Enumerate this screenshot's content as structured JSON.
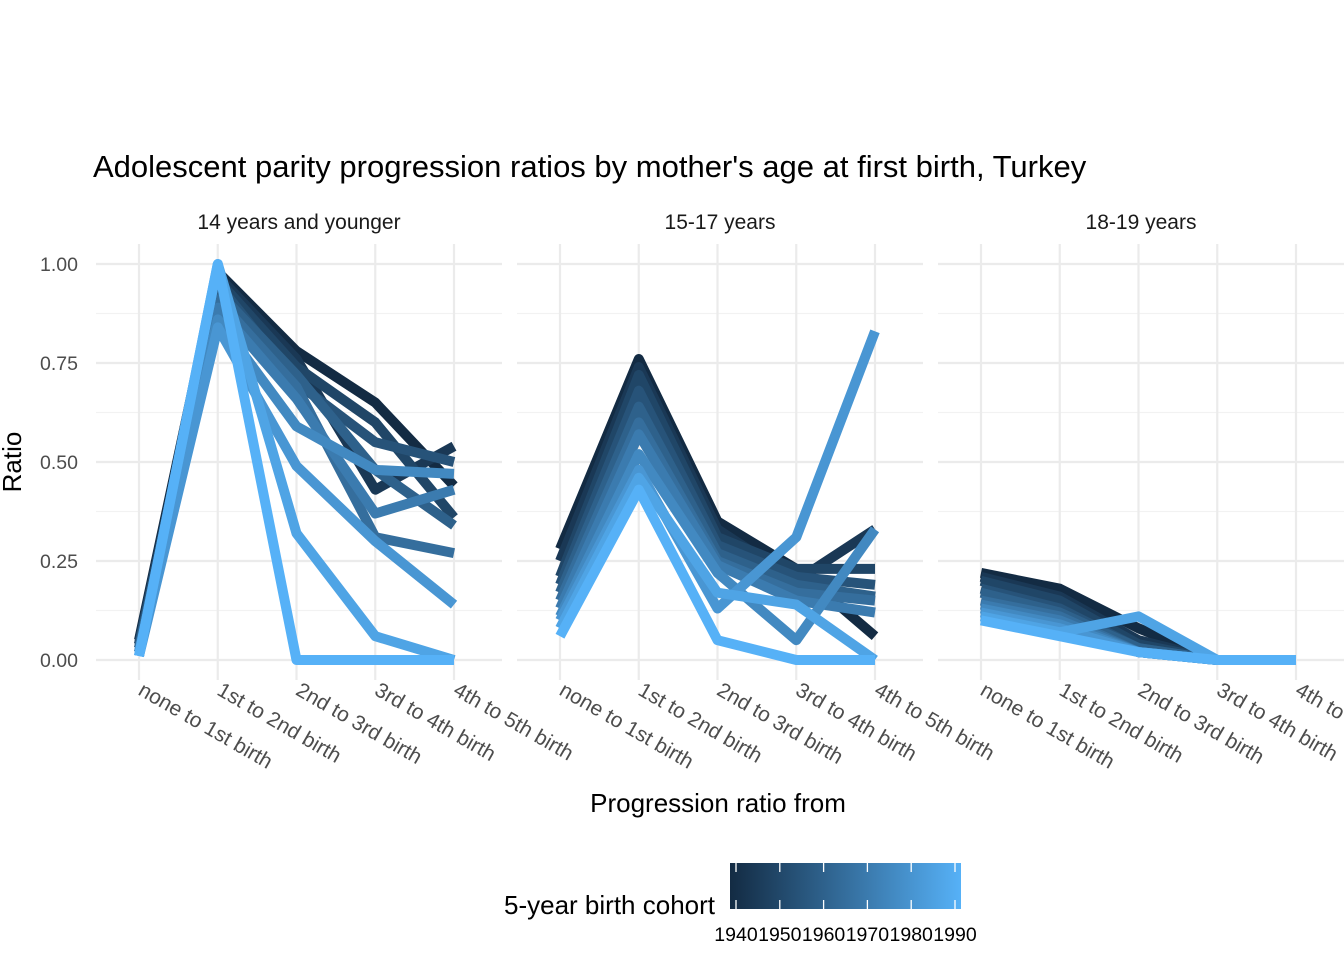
{
  "chart_data": {
    "type": "line",
    "title": "Adolescent parity progression ratios by mother's age at first birth,  Turkey",
    "xlabel": "Progression ratio from",
    "ylabel": "Ratio",
    "ylim": [
      0,
      1
    ],
    "y_ticks": [
      "0.00",
      "0.25",
      "0.50",
      "0.75",
      "1.00"
    ],
    "y_tick_values": [
      0,
      0.25,
      0.5,
      0.75,
      1
    ],
    "categories": [
      "none to 1st birth",
      "1st to 2nd birth",
      "2nd to 3rd birth",
      "3rd to 4th birth",
      "4th to 5th birth"
    ],
    "grid": true,
    "facets": [
      {
        "label": "14 years and younger",
        "series": [
          {
            "cohort": 1940,
            "values": [
              0.05,
              0.98,
              0.78,
              0.65,
              0.44
            ]
          },
          {
            "cohort": 1945,
            "values": [
              0.04,
              0.97,
              0.76,
              0.43,
              0.54
            ]
          },
          {
            "cohort": 1950,
            "values": [
              0.04,
              0.96,
              0.74,
              0.6,
              0.36
            ]
          },
          {
            "cohort": 1955,
            "values": [
              0.03,
              0.95,
              0.7,
              0.55,
              0.5
            ]
          },
          {
            "cohort": 1960,
            "values": [
              0.03,
              0.93,
              0.72,
              0.48,
              0.34
            ]
          },
          {
            "cohort": 1965,
            "values": [
              0.02,
              0.91,
              0.69,
              0.31,
              0.27
            ]
          },
          {
            "cohort": 1970,
            "values": [
              0.02,
              0.89,
              0.66,
              0.37,
              0.43
            ]
          },
          {
            "cohort": 1975,
            "values": [
              0.02,
              0.86,
              0.59,
              0.48,
              0.47
            ]
          },
          {
            "cohort": 1980,
            "values": [
              0.01,
              0.84,
              0.49,
              0.3,
              0.14
            ]
          },
          {
            "cohort": 1985,
            "values": [
              0.01,
              1.0,
              0.32,
              0.06,
              0.0
            ]
          },
          {
            "cohort": 1990,
            "values": [
              0.01,
              1.0,
              0.0,
              0.0,
              0.0
            ]
          }
        ]
      },
      {
        "label": "15-17 years",
        "series": [
          {
            "cohort": 1940,
            "values": [
              0.28,
              0.76,
              0.35,
              0.23,
              0.06
            ]
          },
          {
            "cohort": 1945,
            "values": [
              0.25,
              0.74,
              0.33,
              0.2,
              0.33
            ]
          },
          {
            "cohort": 1950,
            "values": [
              0.21,
              0.72,
              0.31,
              0.23,
              0.23
            ]
          },
          {
            "cohort": 1955,
            "values": [
              0.19,
              0.68,
              0.29,
              0.21,
              0.19
            ]
          },
          {
            "cohort": 1960,
            "values": [
              0.17,
              0.64,
              0.27,
              0.19,
              0.16
            ]
          },
          {
            "cohort": 1965,
            "values": [
              0.15,
              0.6,
              0.25,
              0.17,
              0.15
            ]
          },
          {
            "cohort": 1970,
            "values": [
              0.13,
              0.57,
              0.24,
              0.15,
              0.12
            ]
          },
          {
            "cohort": 1975,
            "values": [
              0.11,
              0.52,
              0.22,
              0.05,
              0.33
            ]
          },
          {
            "cohort": 1980,
            "values": [
              0.1,
              0.48,
              0.13,
              0.31,
              0.83
            ]
          },
          {
            "cohort": 1985,
            "values": [
              0.08,
              0.46,
              0.17,
              0.14,
              0.0
            ]
          },
          {
            "cohort": 1990,
            "values": [
              0.06,
              0.43,
              0.05,
              0.0,
              0.0
            ]
          }
        ]
      },
      {
        "label": "18-19 years",
        "series": [
          {
            "cohort": 1940,
            "values": [
              0.22,
              0.18,
              0.08,
              0.0,
              0.0
            ]
          },
          {
            "cohort": 1945,
            "values": [
              0.21,
              0.16,
              0.05,
              0.0,
              0.0
            ]
          },
          {
            "cohort": 1950,
            "values": [
              0.2,
              0.15,
              0.04,
              0.0,
              0.0
            ]
          },
          {
            "cohort": 1955,
            "values": [
              0.18,
              0.13,
              0.03,
              0.0,
              0.0
            ]
          },
          {
            "cohort": 1960,
            "values": [
              0.17,
              0.12,
              0.03,
              0.0,
              0.0
            ]
          },
          {
            "cohort": 1965,
            "values": [
              0.15,
              0.11,
              0.02,
              0.0,
              0.0
            ]
          },
          {
            "cohort": 1970,
            "values": [
              0.14,
              0.1,
              0.02,
              0.0,
              0.0
            ]
          },
          {
            "cohort": 1975,
            "values": [
              0.13,
              0.09,
              0.02,
              0.0,
              0.0
            ]
          },
          {
            "cohort": 1980,
            "values": [
              0.12,
              0.08,
              0.02,
              0.0,
              0.0
            ]
          },
          {
            "cohort": 1985,
            "values": [
              0.11,
              0.07,
              0.11,
              0.0,
              0.0
            ]
          },
          {
            "cohort": 1990,
            "values": [
              0.1,
              0.06,
              0.02,
              0.0,
              0.0
            ]
          }
        ]
      }
    ],
    "legend": {
      "title": "5-year birth cohort",
      "position": "bottom",
      "breaks": [
        "1940",
        "1950",
        "1960",
        "1970",
        "1980",
        "1990"
      ],
      "range": [
        1940,
        1990
      ],
      "color_low": "#132b43",
      "color_high": "#56b1f7"
    }
  }
}
